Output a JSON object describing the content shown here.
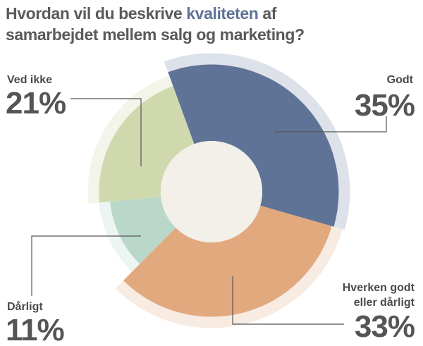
{
  "chart_data": {
    "type": "donut",
    "title": [
      "Hvordan vil du beskrive",
      "kvaliteten",
      "af",
      "samarbejdet mellem salg og marketing?"
    ],
    "categories": [
      "Godt",
      "Hverken godt eller dårligt",
      "Dårligt",
      "Ved ikke"
    ],
    "values": [
      35,
      33,
      11,
      21
    ],
    "value_labels": [
      "35%",
      "33%",
      "11%",
      "21%"
    ],
    "colors": [
      "#5f7396",
      "#e2a97f",
      "#b9d8ca",
      "#d0d9ae"
    ],
    "ring_colors": [
      "#dde2ea",
      "#f8ebe2",
      "#edf5f2",
      "#f3f5ea"
    ]
  }
}
